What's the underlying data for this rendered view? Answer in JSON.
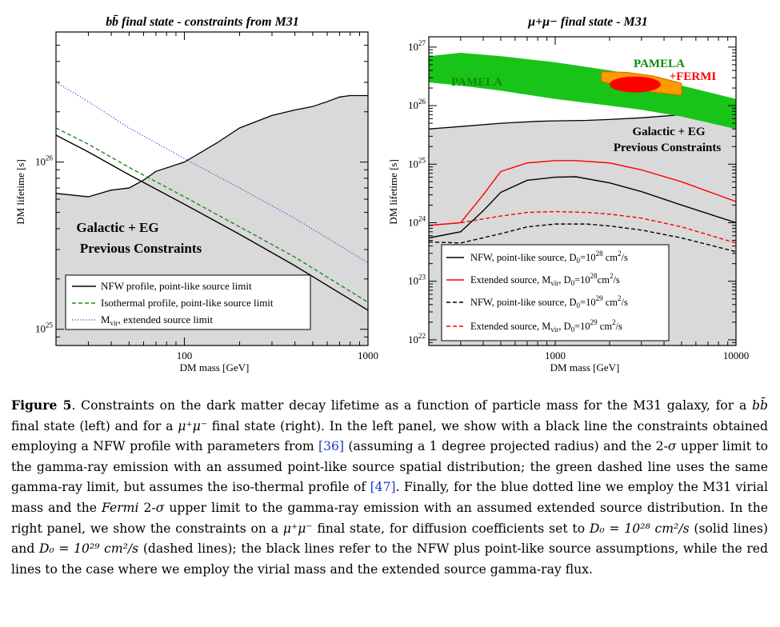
{
  "colors": {
    "constraint_fill": "#d9d9d9",
    "nfw": "#000000",
    "isothermal": "#1f8a1f",
    "mvir": "#3a3adf",
    "pamela": "#19c419",
    "fermi_outer": "#ff9900",
    "fermi_inner": "#ff0000",
    "extended": "#ff0000",
    "link": "#1a3cc8"
  },
  "left_panel": {
    "title": "bb̄ final state - constraints from M31",
    "region_label_1": "Galactic + EG",
    "region_label_2": "Previous Constraints",
    "legend": [
      "NFW profile, point-like source limit",
      "Isothermal profile, point-like source limit",
      "M_vir, extended source limit"
    ]
  },
  "right_panel": {
    "title": "μ+μ−  final state - M31",
    "pamela_label_left": "PAMELA",
    "pamela_label_right": "PAMELA",
    "fermi_label": "+FERMI",
    "region_label_1": "Galactic + EG",
    "region_label_2": "Previous Constraints",
    "legend": [
      "NFW, point-like source, D0=10^28 cm^2/s",
      "Extended source, Mvir, D0=10^28 cm^2/s",
      "NFW, point-like source, D0=10^29 cm^2/s",
      "Extended source, Mvir, D0=10^29 cm^2/s"
    ]
  },
  "chart_data": [
    {
      "type": "line",
      "title": "bb̄ final state - constraints from M31",
      "xlabel": "DM mass [GeV]",
      "ylabel": "DM lifetime [s]",
      "xscale": "log",
      "yscale": "log",
      "xlim": [
        20,
        1000
      ],
      "ylim": [
        8e+24,
        6e+26
      ],
      "xticks": [
        100,
        1000
      ],
      "xtick_labels": [
        "100",
        "1000"
      ],
      "yticks": [
        1e+25,
        1e+26
      ],
      "ytick_labels": [
        "10^25",
        "10^26"
      ],
      "excluded_region": {
        "name": "Galactic + EG Previous Constraints",
        "x": [
          20,
          30,
          40,
          50,
          60,
          70,
          100,
          150,
          200,
          300,
          400,
          500,
          600,
          700,
          800,
          1000
        ],
        "y": [
          6.5e+25,
          6.2e+25,
          6.8e+25,
          7e+25,
          7.8e+25,
          8.8e+25,
          1e+26,
          1.3e+26,
          1.6e+26,
          1.9e+26,
          2.05e+26,
          2.15e+26,
          2.3e+26,
          2.45e+26,
          2.5e+26,
          2.5e+26
        ]
      },
      "series": [
        {
          "name": "NFW profile, point-like source limit",
          "style": "solid",
          "x": [
            20,
            30,
            50,
            100,
            200,
            400,
            1000
          ],
          "y": [
            1.45e+26,
            1.15e+26,
            8.4e+25,
            5.6e+25,
            3.7e+25,
            2.4e+25,
            1.3e+25
          ]
        },
        {
          "name": "Isothermal profile, point-like source limit",
          "style": "dashed",
          "x": [
            20,
            30,
            50,
            100,
            200,
            400,
            1000
          ],
          "y": [
            1.6e+26,
            1.28e+26,
            9.3e+25,
            6.2e+25,
            4.1e+25,
            2.7e+25,
            1.45e+25
          ]
        },
        {
          "name": "M_vir, extended source limit",
          "style": "dotted",
          "x": [
            20,
            30,
            50,
            100,
            200,
            400,
            1000
          ],
          "y": [
            3e+26,
            2.3e+26,
            1.6e+26,
            1.05e+26,
            7e+25,
            4.6e+25,
            2.5e+25
          ]
        }
      ]
    },
    {
      "type": "line",
      "title": "μ+μ−  final state - M31",
      "xlabel": "DM mass [GeV]",
      "ylabel": "DM lifetime [s]",
      "xscale": "log",
      "yscale": "log",
      "xlim": [
        200,
        10000
      ],
      "ylim": [
        8e+21,
        1.5e+27
      ],
      "xticks": [
        1000,
        10000
      ],
      "xtick_labels": [
        "1000",
        "10000"
      ],
      "yticks": [
        1e+22,
        1e+23,
        1e+24,
        1e+25,
        1e+26,
        1e+27
      ],
      "ytick_labels": [
        "10^22",
        "10^23",
        "10^24",
        "10^25",
        "10^26",
        "10^27"
      ],
      "excluded_region": {
        "name": "Galactic + EG Previous Constraints",
        "x": [
          200,
          300,
          500,
          800,
          1000,
          1500,
          2000,
          3000,
          5000,
          10000
        ],
        "y": [
          4e+25,
          4.4e+25,
          5e+25,
          5.4e+25,
          5.5e+25,
          5.6e+25,
          5.8e+25,
          6.2e+25,
          7e+25,
          8e+25
        ]
      },
      "regions": [
        {
          "name": "PAMELA",
          "x": [
            200,
            300,
            500,
            1000,
            2000,
            3000,
            5000,
            10000
          ],
          "y_low": [
            2.5e+26,
            2.2e+26,
            1.8e+26,
            1.3e+26,
            1e+26,
            8.5e+25,
            6.5e+25,
            4e+25
          ],
          "y_high": [
            7e+26,
            8e+26,
            7e+26,
            5.5e+26,
            4e+26,
            3.2e+26,
            2.2e+26,
            1.3e+26
          ]
        },
        {
          "name": "PAMELA +FERMI",
          "x": [
            1800,
            2500,
            3500,
            5000
          ],
          "y_low": [
            2.6e+26,
            2e+26,
            1.7e+26,
            1.5e+26
          ],
          "y_high": [
            3.8e+26,
            3.7e+26,
            3.2e+26,
            2.4e+26
          ]
        }
      ],
      "series": [
        {
          "name": "NFW, point-like source, D0=10^28 cm^2/s",
          "style": "solid",
          "color": "#000000",
          "x": [
            200,
            300,
            400,
            500,
            700,
            1000,
            1300,
            2000,
            3000,
            5000,
            10000
          ],
          "y": [
            5.5e+23,
            7e+23,
            1.6e+24,
            3.3e+24,
            5.3e+24,
            6e+24,
            6.1e+24,
            4.8e+24,
            3.4e+24,
            2e+24,
            1e+24
          ]
        },
        {
          "name": "Extended source, Mvir, D0=10^28 cm^2/s",
          "style": "solid",
          "color": "#ff0000",
          "x": [
            200,
            300,
            400,
            500,
            700,
            1000,
            1300,
            2000,
            3000,
            5000,
            10000
          ],
          "y": [
            9e+23,
            1e+24,
            3e+24,
            7.5e+24,
            1.05e+25,
            1.15e+25,
            1.15e+25,
            1.05e+25,
            8e+24,
            5e+24,
            2.3e+24
          ]
        },
        {
          "name": "NFW, point-like source, D0=10^29 cm^2/s",
          "style": "dashed",
          "color": "#000000",
          "x": [
            200,
            300,
            500,
            700,
            1000,
            1500,
            2000,
            3000,
            5000,
            10000
          ],
          "y": [
            4.7e+23,
            4.5e+23,
            6.5e+23,
            8.5e+23,
            9.5e+23,
            9.5e+23,
            8.8e+23,
            7.5e+23,
            5.5e+23,
            3.2e+23
          ]
        },
        {
          "name": "Extended source, Mvir, D0=10^29 cm^2/s",
          "style": "dashed",
          "color": "#ff0000",
          "x": [
            200,
            300,
            500,
            700,
            1000,
            1500,
            2000,
            3000,
            5000,
            10000
          ],
          "y": [
            9e+23,
            1e+24,
            1.3e+24,
            1.5e+24,
            1.55e+24,
            1.5e+24,
            1.4e+24,
            1.2e+24,
            8.5e+23,
            4.5e+23
          ]
        }
      ]
    }
  ],
  "caption": {
    "label": "Figure 5",
    "p1": ". Constraints on the dark matter decay lifetime as a function of particle mass for the M31 galaxy, for a ",
    "bb": "bb̄",
    "p2": " final state (left) and for a ",
    "mumu": "μ⁺μ⁻",
    "p3": " final state (right). In the left panel, we show with a black line the constraints obtained employing a NFW profile with parameters from ",
    "ref1": "[36]",
    "p4": " (assuming a 1 degree projected radius) and the 2-",
    "sigma": "σ",
    "p5": " upper limit to the gamma-ray emission with an assumed point-like source spatial distribution; the green dashed line uses the same gamma-ray limit, but assumes the iso-thermal profile of ",
    "ref2": "[47]",
    "p6": ". Finally, for the blue dotted line we employ the M31 virial mass and the ",
    "fermi": "Fermi",
    "p7": " 2-",
    "p8": " upper limit to the gamma-ray emission with an assumed extended source distribution. In the right panel, we show the constraints on a ",
    "p9": " final state, for diffusion coefficients set to ",
    "d28": "D₀ = 10²⁸ cm²/s",
    "p10": " (solid lines) and ",
    "d29": "D₀ = 10²⁹ cm²/s",
    "p11": " (dashed lines); the black lines refer to the NFW plus point-like source assumptions, while the red lines to the case where we employ the virial mass and the extended source gamma-ray flux."
  }
}
